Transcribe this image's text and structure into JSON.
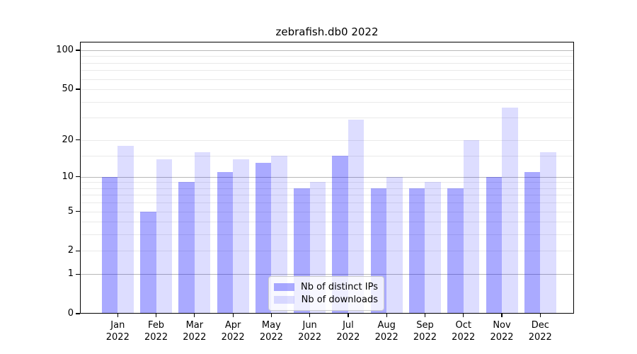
{
  "title": "zebrafish.db0 2022",
  "legend": {
    "items": [
      {
        "label": "Nb of distinct IPs",
        "color": "rgba(0,0,255,0.333)"
      },
      {
        "label": "Nb of downloads",
        "color": "rgba(0,0,255,0.135)"
      }
    ],
    "position": "bottom-center"
  },
  "chart_data": {
    "type": "bar",
    "title": "zebrafish.db0 2022",
    "categories": [
      "Jan",
      "Feb",
      "Mar",
      "Apr",
      "May",
      "Jun",
      "Jul",
      "Aug",
      "Sep",
      "Oct",
      "Nov",
      "Dec"
    ],
    "category_year": "2022",
    "series": [
      {
        "name": "Nb of distinct IPs",
        "values": [
          10,
          5,
          9,
          11,
          13,
          8,
          15,
          8,
          8,
          8,
          10,
          11
        ],
        "color": "rgba(0,0,255,0.333)"
      },
      {
        "name": "Nb of downloads",
        "values": [
          18,
          14,
          16,
          14,
          15,
          9,
          29,
          10,
          9,
          20,
          36,
          16
        ],
        "color": "rgba(0,0,255,0.135)"
      }
    ],
    "xlabel": "",
    "ylabel": "",
    "yscale": "log1p",
    "ylim": [
      0,
      116.2
    ],
    "y_major_ticks": [
      0,
      1,
      2,
      5,
      10,
      20,
      50,
      100
    ],
    "y_minor_gridlines": [
      3,
      4,
      6,
      7,
      8,
      9,
      15,
      30,
      40,
      60,
      70,
      80,
      90
    ],
    "y_emphasized_gridlines": [
      1,
      10,
      100
    ],
    "grid": "horizontal",
    "legend_position": "bottom-center"
  },
  "colors": {
    "background": "#ffffff",
    "bar_ips": "rgba(0,0,255,0.333)",
    "bar_downloads": "rgba(0,0,255,0.135)",
    "grid_major": "#b8b8b8",
    "grid_minor": "#e9e9e9",
    "spine": "#000000",
    "text": "#000000"
  }
}
